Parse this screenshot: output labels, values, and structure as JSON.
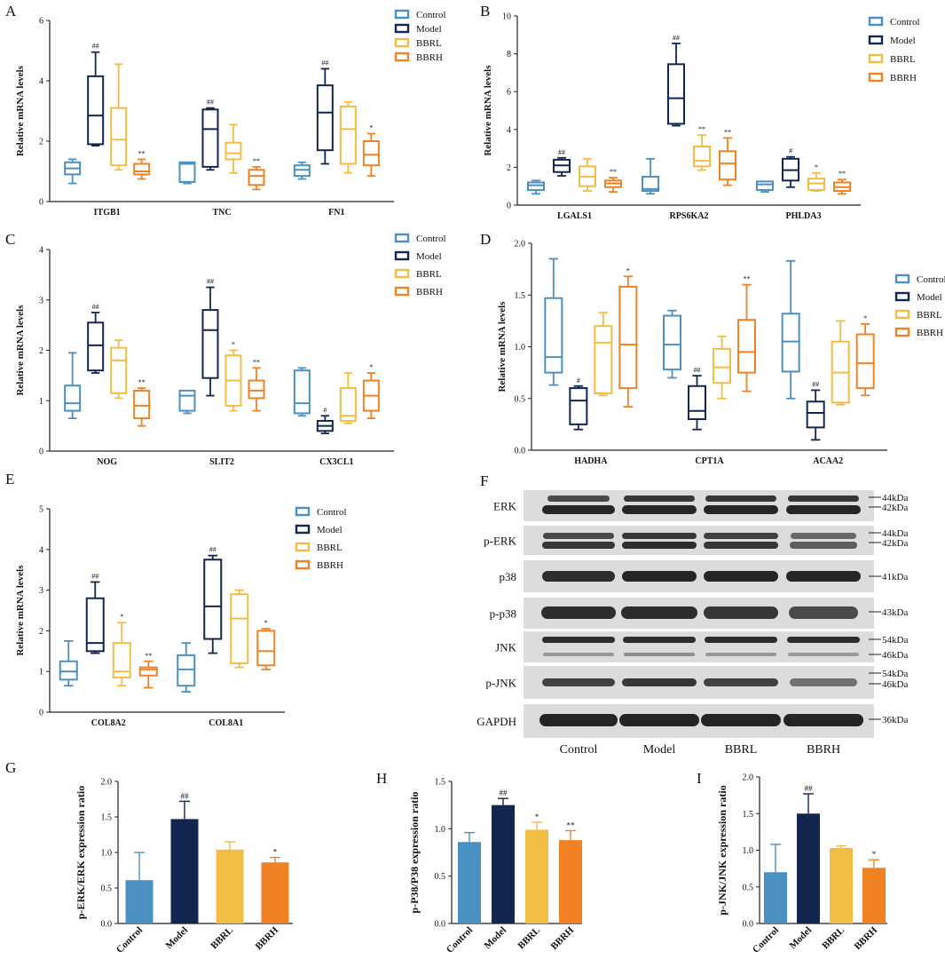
{
  "colors": {
    "control": "#4a90c2",
    "model": "#13264f",
    "bbrl": "#f2bd43",
    "bbrh": "#f08224",
    "blot_bg": "#dcdcdc",
    "band": "#1a1a1a"
  },
  "groups": [
    "Control",
    "Model",
    "BBRL",
    "BBRH"
  ],
  "chart_data": [
    {
      "panel": "A",
      "type": "box",
      "ylabel": "Relative mRNA levels",
      "ylim": [
        0,
        6
      ],
      "yticks": [
        0,
        2,
        4,
        6
      ],
      "categories": [
        "ITGB1",
        "TNC",
        "FN1"
      ],
      "boxes": [
        [
          {
            "min": 0.6,
            "q1": 0.9,
            "med": 1.1,
            "q3": 1.3,
            "max": 1.4,
            "sig": ""
          },
          {
            "min": 1.85,
            "q1": 1.9,
            "med": 2.85,
            "q3": 4.15,
            "max": 4.95,
            "sig": "##"
          },
          {
            "min": 1.05,
            "q1": 1.2,
            "med": 2.05,
            "q3": 3.1,
            "max": 4.55,
            "sig": ""
          },
          {
            "min": 0.75,
            "q1": 0.9,
            "med": 1.0,
            "q3": 1.25,
            "max": 1.4,
            "sig": "**"
          }
        ],
        [
          {
            "min": 0.6,
            "q1": 0.65,
            "med": 1.25,
            "q3": 1.3,
            "max": 1.3,
            "sig": ""
          },
          {
            "min": 1.05,
            "q1": 1.15,
            "med": 2.4,
            "q3": 3.05,
            "max": 3.1,
            "sig": "##"
          },
          {
            "min": 0.95,
            "q1": 1.4,
            "med": 1.6,
            "q3": 1.95,
            "max": 2.55,
            "sig": ""
          },
          {
            "min": 0.4,
            "q1": 0.55,
            "med": 0.85,
            "q3": 1.05,
            "max": 1.15,
            "sig": "**"
          }
        ],
        [
          {
            "min": 0.75,
            "q1": 0.85,
            "med": 1.05,
            "q3": 1.2,
            "max": 1.3,
            "sig": ""
          },
          {
            "min": 1.25,
            "q1": 1.7,
            "med": 2.95,
            "q3": 3.85,
            "max": 4.4,
            "sig": "##"
          },
          {
            "min": 0.95,
            "q1": 1.25,
            "med": 2.4,
            "q3": 3.15,
            "max": 3.3,
            "sig": ""
          },
          {
            "min": 0.85,
            "q1": 1.2,
            "med": 1.55,
            "q3": 2.0,
            "max": 2.25,
            "sig": "*"
          }
        ]
      ]
    },
    {
      "panel": "B",
      "type": "box",
      "ylabel": "Relative mRNA levels",
      "ylim": [
        0,
        10
      ],
      "yticks": [
        0,
        2,
        4,
        6,
        8,
        10
      ],
      "categories": [
        "LGALS1",
        "RPS6KA2",
        "PHLDA3"
      ],
      "boxes": [
        [
          {
            "min": 0.6,
            "q1": 0.8,
            "med": 1.05,
            "q3": 1.2,
            "max": 1.3,
            "sig": ""
          },
          {
            "min": 1.55,
            "q1": 1.75,
            "med": 2.1,
            "q3": 2.4,
            "max": 2.5,
            "sig": "##"
          },
          {
            "min": 0.75,
            "q1": 1.0,
            "med": 1.5,
            "q3": 2.05,
            "max": 2.45,
            "sig": ""
          },
          {
            "min": 0.7,
            "q1": 0.95,
            "med": 1.15,
            "q3": 1.3,
            "max": 1.45,
            "sig": "**"
          }
        ],
        [
          {
            "min": 0.6,
            "q1": 0.75,
            "med": 0.85,
            "q3": 1.5,
            "max": 2.45,
            "sig": ""
          },
          {
            "min": 4.2,
            "q1": 4.3,
            "med": 5.65,
            "q3": 7.45,
            "max": 8.55,
            "sig": "##"
          },
          {
            "min": 1.85,
            "q1": 2.05,
            "med": 2.35,
            "q3": 3.1,
            "max": 3.7,
            "sig": "**"
          },
          {
            "min": 1.05,
            "q1": 1.35,
            "med": 2.2,
            "q3": 2.85,
            "max": 3.55,
            "sig": "**"
          }
        ],
        [
          {
            "min": 0.7,
            "q1": 0.8,
            "med": 1.1,
            "q3": 1.25,
            "max": 1.25,
            "sig": ""
          },
          {
            "min": 0.95,
            "q1": 1.3,
            "med": 1.85,
            "q3": 2.45,
            "max": 2.55,
            "sig": "#"
          },
          {
            "min": 0.75,
            "q1": 0.8,
            "med": 1.15,
            "q3": 1.4,
            "max": 1.7,
            "sig": "*"
          },
          {
            "min": 0.6,
            "q1": 0.75,
            "med": 0.95,
            "q3": 1.2,
            "max": 1.35,
            "sig": "**"
          }
        ]
      ]
    },
    {
      "panel": "C",
      "type": "box",
      "ylabel": "Relative mRNA levels",
      "ylim": [
        0,
        4
      ],
      "yticks": [
        0,
        1,
        2,
        3,
        4
      ],
      "categories": [
        "NOG",
        "SLIT2",
        "CX3CL1"
      ],
      "boxes": [
        [
          {
            "min": 0.65,
            "q1": 0.8,
            "med": 0.95,
            "q3": 1.3,
            "max": 1.95,
            "sig": ""
          },
          {
            "min": 1.55,
            "q1": 1.6,
            "med": 2.1,
            "q3": 2.55,
            "max": 2.75,
            "sig": "##"
          },
          {
            "min": 1.05,
            "q1": 1.15,
            "med": 1.8,
            "q3": 2.05,
            "max": 2.2,
            "sig": ""
          },
          {
            "min": 0.5,
            "q1": 0.65,
            "med": 0.9,
            "q3": 1.2,
            "max": 1.25,
            "sig": "**"
          }
        ],
        [
          {
            "min": 0.75,
            "q1": 0.8,
            "med": 1.1,
            "q3": 1.2,
            "max": 1.2,
            "sig": ""
          },
          {
            "min": 1.1,
            "q1": 1.45,
            "med": 2.4,
            "q3": 2.8,
            "max": 3.25,
            "sig": "##"
          },
          {
            "min": 0.8,
            "q1": 0.9,
            "med": 1.4,
            "q3": 1.9,
            "max": 2.0,
            "sig": "*"
          },
          {
            "min": 0.8,
            "q1": 1.05,
            "med": 1.2,
            "q3": 1.4,
            "max": 1.65,
            "sig": "**"
          }
        ],
        [
          {
            "min": 0.7,
            "q1": 0.75,
            "med": 0.95,
            "q3": 1.6,
            "max": 1.65,
            "sig": ""
          },
          {
            "min": 0.35,
            "q1": 0.4,
            "med": 0.5,
            "q3": 0.6,
            "max": 0.7,
            "sig": "#"
          },
          {
            "min": 0.55,
            "q1": 0.6,
            "med": 0.7,
            "q3": 1.25,
            "max": 1.55,
            "sig": ""
          },
          {
            "min": 0.65,
            "q1": 0.8,
            "med": 1.1,
            "q3": 1.4,
            "max": 1.55,
            "sig": "*"
          }
        ]
      ]
    },
    {
      "panel": "D",
      "type": "box",
      "ylabel": "Relative mRNA levels",
      "ylim": [
        0,
        2
      ],
      "yticks": [
        0.0,
        0.5,
        1.0,
        1.5,
        2.0
      ],
      "categories": [
        "HADHA",
        "CPT1A",
        "ACAA2"
      ],
      "boxes": [
        [
          {
            "min": 0.63,
            "q1": 0.75,
            "med": 0.9,
            "q3": 1.47,
            "max": 1.85,
            "sig": ""
          },
          {
            "min": 0.2,
            "q1": 0.25,
            "med": 0.48,
            "q3": 0.6,
            "max": 0.62,
            "sig": "#"
          },
          {
            "min": 0.53,
            "q1": 0.55,
            "med": 1.04,
            "q3": 1.2,
            "max": 1.33,
            "sig": ""
          },
          {
            "min": 0.42,
            "q1": 0.6,
            "med": 1.02,
            "q3": 1.58,
            "max": 1.68,
            "sig": "*"
          }
        ],
        [
          {
            "min": 0.7,
            "q1": 0.78,
            "med": 1.02,
            "q3": 1.3,
            "max": 1.35,
            "sig": ""
          },
          {
            "min": 0.2,
            "q1": 0.3,
            "med": 0.38,
            "q3": 0.62,
            "max": 0.72,
            "sig": "##"
          },
          {
            "min": 0.5,
            "q1": 0.65,
            "med": 0.8,
            "q3": 0.98,
            "max": 1.1,
            "sig": ""
          },
          {
            "min": 0.57,
            "q1": 0.75,
            "med": 0.95,
            "q3": 1.26,
            "max": 1.6,
            "sig": "**"
          }
        ],
        [
          {
            "min": 0.5,
            "q1": 0.76,
            "med": 1.05,
            "q3": 1.32,
            "max": 1.83,
            "sig": ""
          },
          {
            "min": 0.1,
            "q1": 0.22,
            "med": 0.36,
            "q3": 0.47,
            "max": 0.58,
            "sig": "##"
          },
          {
            "min": 0.44,
            "q1": 0.46,
            "med": 0.75,
            "q3": 1.05,
            "max": 1.25,
            "sig": ""
          },
          {
            "min": 0.53,
            "q1": 0.6,
            "med": 0.84,
            "q3": 1.12,
            "max": 1.22,
            "sig": "*"
          }
        ]
      ]
    },
    {
      "panel": "E",
      "type": "box",
      "ylabel": "Relative mRNA levels",
      "ylim": [
        0,
        5
      ],
      "yticks": [
        0,
        1,
        2,
        3,
        4,
        5
      ],
      "categories": [
        "COL8A2",
        "COL8A1"
      ],
      "boxes": [
        [
          {
            "min": 0.65,
            "q1": 0.8,
            "med": 1.0,
            "q3": 1.25,
            "max": 1.75,
            "sig": ""
          },
          {
            "min": 1.45,
            "q1": 1.5,
            "med": 1.7,
            "q3": 2.8,
            "max": 3.2,
            "sig": "##"
          },
          {
            "min": 0.65,
            "q1": 0.85,
            "med": 1.0,
            "q3": 1.7,
            "max": 2.2,
            "sig": "*"
          },
          {
            "min": 0.6,
            "q1": 0.9,
            "med": 1.05,
            "q3": 1.1,
            "max": 1.25,
            "sig": "**"
          }
        ],
        [
          {
            "min": 0.5,
            "q1": 0.65,
            "med": 1.05,
            "q3": 1.4,
            "max": 1.7,
            "sig": ""
          },
          {
            "min": 1.45,
            "q1": 1.8,
            "med": 2.6,
            "q3": 3.75,
            "max": 3.85,
            "sig": "##"
          },
          {
            "min": 1.1,
            "q1": 1.2,
            "med": 2.3,
            "q3": 2.9,
            "max": 3.0,
            "sig": ""
          },
          {
            "min": 1.05,
            "q1": 1.15,
            "med": 1.5,
            "q3": 2.0,
            "max": 2.05,
            "sig": "*"
          }
        ]
      ]
    },
    {
      "panel": "G",
      "type": "bar",
      "ylabel": "p-ERK/ERK expression ratio",
      "ylim": [
        0,
        2
      ],
      "yticks": [
        0.0,
        0.5,
        1.0,
        1.5,
        2.0
      ],
      "categories": [
        "Control",
        "Model",
        "BBRL",
        "BBRH"
      ],
      "values": [
        0.61,
        1.47,
        1.04,
        0.86
      ],
      "errors": [
        0.39,
        0.25,
        0.11,
        0.07
      ],
      "sig": [
        "",
        "##",
        "",
        "*"
      ]
    },
    {
      "panel": "H",
      "type": "bar",
      "ylabel": "p-P38/P38 expression ratio",
      "ylim": [
        0,
        1.5
      ],
      "yticks": [
        0.0,
        0.5,
        1.0,
        1.5
      ],
      "categories": [
        "Control",
        "Model",
        "BBRL",
        "BBRH"
      ],
      "values": [
        0.86,
        1.25,
        0.99,
        0.88
      ],
      "errors": [
        0.1,
        0.07,
        0.08,
        0.1
      ],
      "sig": [
        "",
        "##",
        "*",
        "**"
      ]
    },
    {
      "panel": "I",
      "type": "bar",
      "ylabel": "p-JNK/JNK expression ratio",
      "ylim": [
        0,
        2
      ],
      "yticks": [
        0.0,
        0.5,
        1.0,
        1.5,
        2.0
      ],
      "categories": [
        "Control",
        "Model",
        "BBRL",
        "BBRH"
      ],
      "values": [
        0.7,
        1.5,
        1.03,
        0.76
      ],
      "errors": [
        0.38,
        0.27,
        0.03,
        0.11
      ],
      "sig": [
        "",
        "##",
        "",
        "*"
      ]
    }
  ],
  "blot": {
    "panel": "F",
    "lanes": [
      "Control",
      "Model",
      "BBRL",
      "BBRH"
    ],
    "rows": [
      {
        "label": "ERK",
        "markers": [
          "44kDa",
          "42kDa"
        ]
      },
      {
        "label": "p-ERK",
        "markers": [
          "44kDa",
          "42kDa"
        ]
      },
      {
        "label": "p38",
        "markers": [
          "41kDa"
        ]
      },
      {
        "label": "p-p38",
        "markers": [
          "43kDa"
        ]
      },
      {
        "label": "JNK",
        "markers": [
          "54kDa",
          "46kDa"
        ]
      },
      {
        "label": "p-JNK",
        "markers": [
          "54kDa",
          "46kDa"
        ]
      },
      {
        "label": "GAPDH",
        "markers": [
          "36kDa"
        ]
      }
    ]
  }
}
